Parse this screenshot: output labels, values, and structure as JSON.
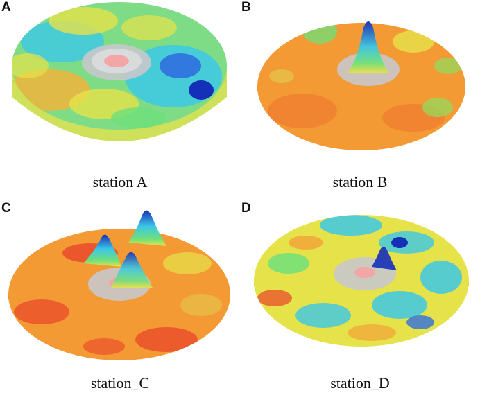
{
  "figure": {
    "panels": [
      {
        "letter": "A",
        "caption": "station A"
      },
      {
        "letter": "B",
        "caption": "station B"
      },
      {
        "letter": "C",
        "caption": "station_C"
      },
      {
        "letter": "D",
        "caption": "station_D"
      }
    ],
    "colors": {
      "deep_blue": "#1530b8",
      "blue": "#2f6fe0",
      "cyan": "#3cc8e6",
      "green": "#6ee07a",
      "yellow": "#e6e24a",
      "orange": "#f39a35",
      "red": "#e8452a",
      "platform_gray": "#c8c8cc",
      "center_pink": "#f2a6a6"
    }
  }
}
